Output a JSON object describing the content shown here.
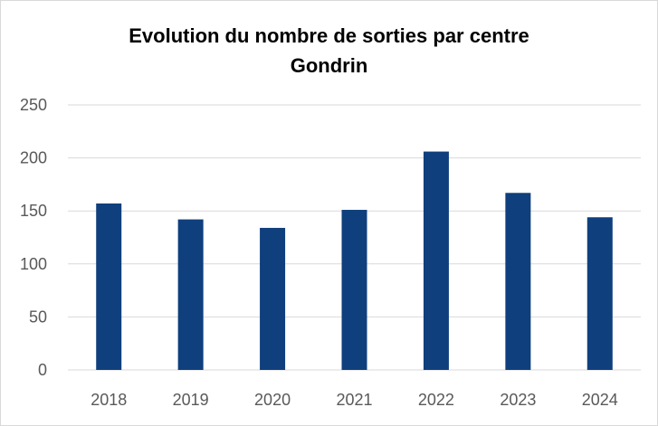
{
  "chart_data": {
    "type": "bar",
    "title": "Evolution du nombre de sorties par centre",
    "subtitle": "Gondrin",
    "categories": [
      "2018",
      "2019",
      "2020",
      "2021",
      "2022",
      "2023",
      "2024"
    ],
    "values": [
      157,
      142,
      134,
      151,
      206,
      167,
      144
    ],
    "ylim": [
      0,
      250
    ],
    "yticks": [
      0,
      50,
      100,
      150,
      200,
      250
    ],
    "grid": true,
    "legend": "none",
    "bar_color": "#0F3F7C",
    "grid_color": "#D9D9D9"
  }
}
